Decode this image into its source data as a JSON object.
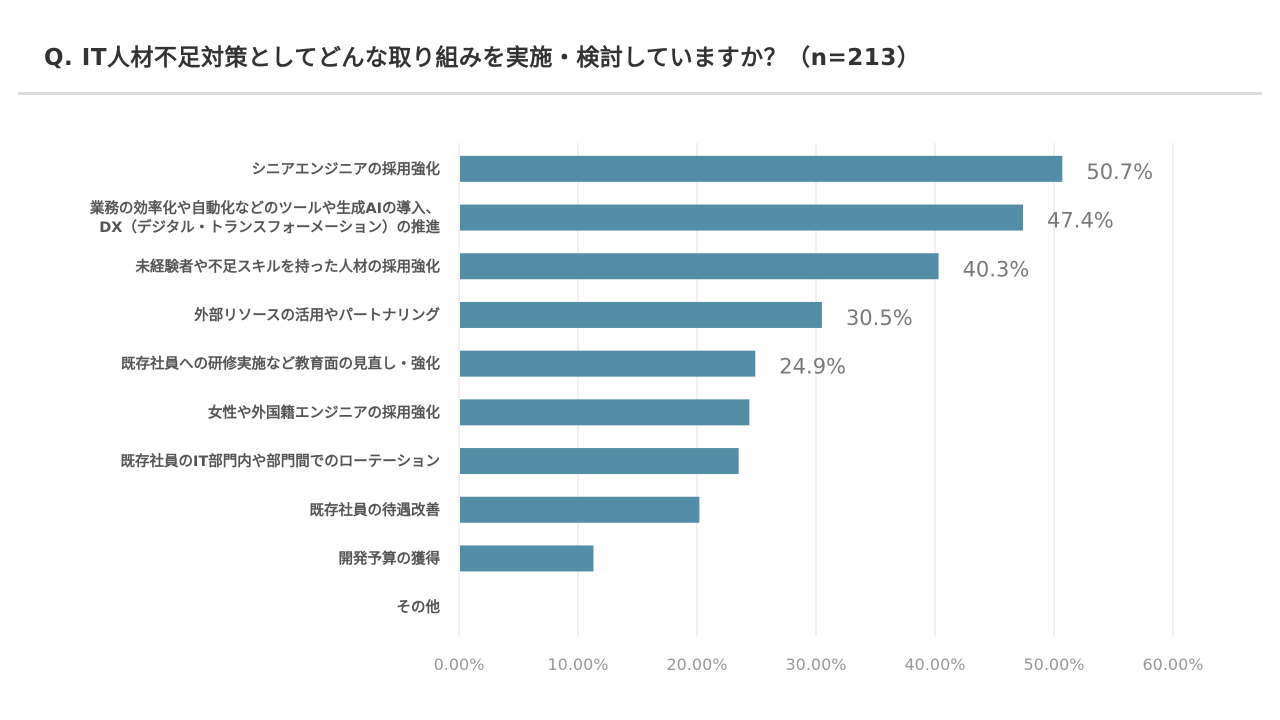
{
  "header": {
    "title": "Q. IT人材不足対策としてどんな取り組みを実施・検討していますか？（n=213）"
  },
  "colors": {
    "bar": "#538ea6",
    "grid": "#e3e3e3",
    "title_rule": "#dcdcdc"
  },
  "chart_data": {
    "type": "bar",
    "orientation": "horizontal",
    "title": "Q. IT人材不足対策としてどんな取り組みを実施・検討していますか？（n=213）",
    "categories": [
      [
        "シニアエンジニアの採用強化"
      ],
      [
        "業務の効率化や自動化などのツールや生成AIの導入、",
        "DX（デジタル・トランスフォーメーション）の推進"
      ],
      [
        "未経験者や不足スキルを持った人材の採用強化"
      ],
      [
        "外部リソースの活用やパートナリング"
      ],
      [
        "既存社員への研修実施など教育面の見直し・強化"
      ],
      [
        "女性や外国籍エンジニアの採用強化"
      ],
      [
        "既存社員のIT部門内や部門間でのローテーション"
      ],
      [
        "既存社員の待遇改善"
      ],
      [
        "開発予算の獲得"
      ],
      [
        "その他"
      ]
    ],
    "values": [
      50.7,
      47.4,
      40.3,
      30.5,
      24.9,
      24.4,
      23.5,
      20.2,
      11.3,
      0
    ],
    "data_labels": [
      "50.7%",
      "47.4%",
      "40.3%",
      "30.5%",
      "24.9%",
      null,
      null,
      null,
      null,
      null
    ],
    "xlim": [
      0,
      60
    ],
    "xticks": [
      0,
      10,
      20,
      30,
      40,
      50,
      60
    ],
    "xtick_labels": [
      "0.00%",
      "10.00%",
      "20.00%",
      "30.00%",
      "40.00%",
      "50.00%",
      "60.00%"
    ],
    "xlabel": "",
    "ylabel": "",
    "grid": "vertical"
  }
}
